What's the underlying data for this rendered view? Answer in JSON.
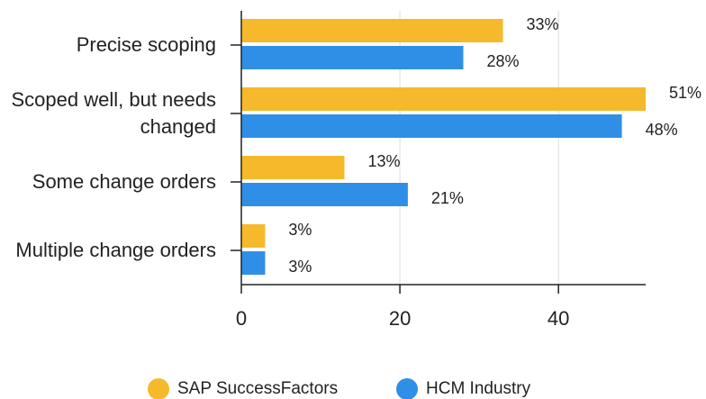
{
  "chart_data": {
    "type": "hbar",
    "categories": [
      "Precise scoping",
      "Scoped well, but needs changed",
      "Some change orders",
      "Multiple change orders"
    ],
    "series": [
      {
        "name": "SAP SuccessFactors",
        "color": "#f6b92b",
        "values": [
          33,
          51,
          13,
          3
        ],
        "value_labels": [
          "33%",
          "51%",
          "13%",
          "3%"
        ]
      },
      {
        "name": "HCM Industry",
        "color": "#2f8fe6",
        "values": [
          28,
          48,
          21,
          3
        ],
        "value_labels": [
          "28%",
          "48%",
          "21%",
          "3%"
        ]
      }
    ],
    "xlim": [
      0,
      51
    ],
    "xticks": [
      0,
      20,
      40
    ],
    "grid": true
  }
}
